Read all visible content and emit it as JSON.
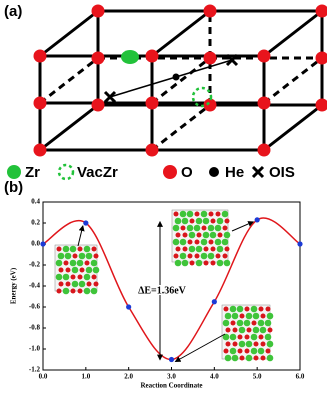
{
  "diagram": {
    "label": "(a)",
    "legend": [
      "Zr",
      "VacZr",
      "O",
      "He",
      "OIS"
    ]
  },
  "chart_data": {
    "type": "line",
    "panel_label": "(b)",
    "xlabel": "Reaction Coordinate",
    "ylabel": "Energy (eV)",
    "annotation": "ΔE=1.36eV",
    "x": [
      0,
      1,
      2,
      3,
      4,
      5,
      6
    ],
    "series": [
      {
        "color": "#e0161b",
        "marker_color": "#1c3ad6",
        "values": [
          0,
          0.2,
          -0.6,
          -1.1,
          -0.55,
          0.23,
          0
        ]
      }
    ],
    "xlim": [
      0,
      6
    ],
    "ylim": [
      -1.2,
      0.4
    ],
    "xticks": [
      {
        "value": 0,
        "label": "0.0"
      },
      {
        "value": 1,
        "label": "1.0"
      },
      {
        "value": 2,
        "label": "2.0"
      },
      {
        "value": 3,
        "label": "3.0"
      },
      {
        "value": 4,
        "label": "4.0"
      },
      {
        "value": 5,
        "label": "5.0"
      },
      {
        "value": 6,
        "label": "6.0"
      }
    ],
    "yticks": [
      0.4,
      0.2,
      {
        "value": 0,
        "label": "0.0"
      },
      -0.2,
      -0.4,
      -0.6,
      -0.8,
      {
        "value": -1,
        "label": "-1.0"
      },
      -1.2
    ]
  }
}
